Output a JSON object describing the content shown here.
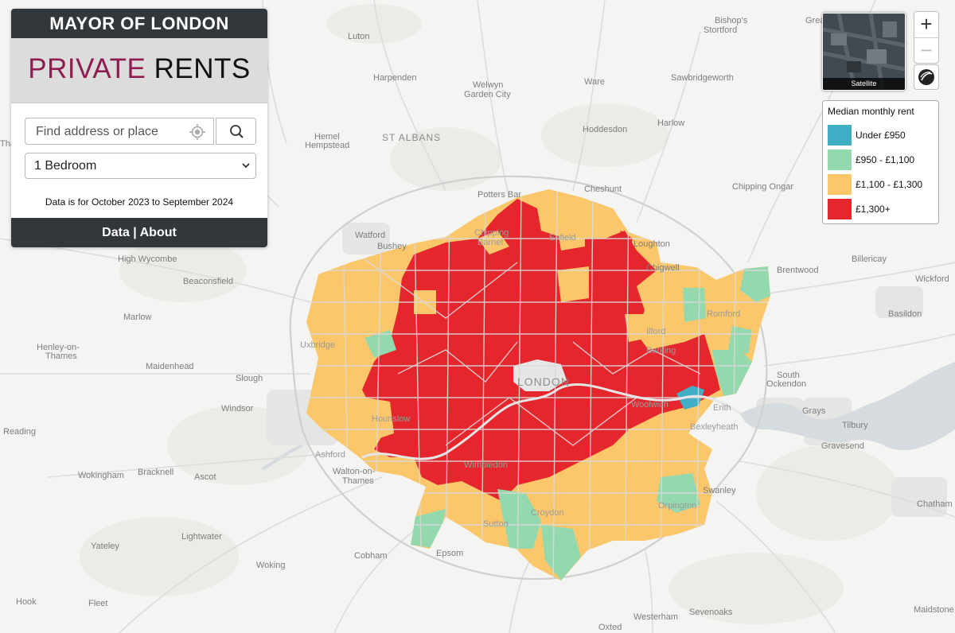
{
  "panel": {
    "header": "MAYOR OF LONDON",
    "title_accent": "PRIVATE",
    "title_rest": "RENTS",
    "search_placeholder": "Find address or place",
    "bedroom_selected": "1 Bedroom",
    "period_text": "Data is for October 2023 to September 2024",
    "footer_data": "Data",
    "footer_sep": " | ",
    "footer_about": "About"
  },
  "controls": {
    "satellite_label": "Satellite",
    "zoom_in": "+",
    "zoom_out": "−"
  },
  "legend": {
    "title": "Median monthly rent",
    "items": [
      {
        "label": "Under £950",
        "color": "#40aec4"
      },
      {
        "label": "£950 - £1,100",
        "color": "#94d8ae"
      },
      {
        "label": "£1,100 - £1,300",
        "color": "#fcc76a"
      },
      {
        "label": "£1,300+",
        "color": "#e5262d"
      }
    ]
  },
  "places": {
    "luton": "Luton",
    "bishops": "Bishop's",
    "stortford": "Stortford",
    "harpenden": "Harpenden",
    "welwyn": "Welwyn",
    "garden_city": "Garden City",
    "ware": "Ware",
    "sawbridgeworth": "Sawbridgeworth",
    "harlow": "Harlow",
    "hemel": "Hemel",
    "hempstead": "Hempstead",
    "st_albans": "ST ALBANS",
    "hoddesdon": "Hoddesdon",
    "cheshunt": "Cheshunt",
    "chipping_ongar": "Chipping Ongar",
    "potters_bar": "Potters Bar",
    "watford": "Watford",
    "bushey": "Bushey",
    "loughton": "Loughton",
    "chigwell": "Chigwell",
    "brentwood": "Brentwood",
    "billericay": "Billericay",
    "wickford": "Wickford",
    "high_wycombe": "High Wycombe",
    "beaconsfield": "Beaconsfield",
    "marlow": "Marlow",
    "basildon": "Basildon",
    "henley": "Henley-on-",
    "thames": "Thames",
    "maidenhead": "Maidenhead",
    "slough": "Slough",
    "south": "South",
    "ockendon": "Ockendon",
    "windsor": "Windsor",
    "grays": "Grays",
    "tilbury": "Tilbury",
    "gravesend": "Gravesend",
    "reading": "Reading",
    "wokingham": "Wokingham",
    "bracknell": "Bracknell",
    "ascot": "Ascot",
    "walton": "Walton-on-",
    "walton_thames": "Thames",
    "swanley": "Swanley",
    "chatham": "Chatham",
    "yateley": "Yateley",
    "lightwater": "Lightwater",
    "cobham": "Cobham",
    "epsom": "Epsom",
    "woking": "Woking",
    "hook": "Hook",
    "fleet": "Fleet",
    "oxted": "Oxted",
    "westerham": "Westerham",
    "sevenoaks": "Sevenoaks",
    "maidstone": "Maidstone",
    "london": "LONDON",
    "uxbridge": "Uxbridge",
    "hounslow": "Hounslow",
    "ashford": "Ashford",
    "romford": "Romford",
    "barking": "Barking",
    "ilford": "Ilford",
    "enfield": "Enfield",
    "chipping": "Chipping",
    "barnet": "Barnet",
    "bexleyheath": "Bexleyheath",
    "erith": "Erith",
    "woolwich": "Woolwich",
    "orpington": "Orpington",
    "croydon": "Croydon",
    "sutton": "Sutton",
    "wimbledon": "Wimbledon",
    "tha": "Tha",
    "great": "Great"
  }
}
